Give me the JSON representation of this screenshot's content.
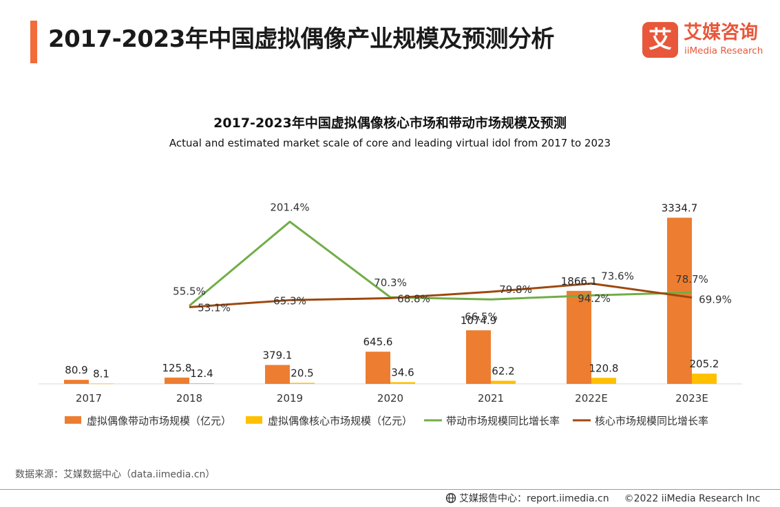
{
  "header": {
    "title": "2017-2023年中国虚拟偶像产业规模及预测分析",
    "accent_color": "#f26b3a"
  },
  "logo": {
    "glyph": "艾",
    "name_cn": "艾媒咨询",
    "name_en": "iiMedia Research",
    "color": "#e8573a"
  },
  "chart_data": {
    "type": "bar",
    "title": "2017-2023年中国虚拟偶像核心市场和带动市场规模及预测",
    "subtitle": "Actual and estimated market scale of core and leading virtual idol from 2017 to 2023",
    "categories": [
      "2017",
      "2018",
      "2019",
      "2020",
      "2021",
      "2022E",
      "2023E"
    ],
    "series": [
      {
        "name": "虚拟偶像带动市场规模（亿元）",
        "type": "bar",
        "axis": "left",
        "color": "#ed7d31",
        "values": [
          80.9,
          125.8,
          379.1,
          645.6,
          1074.9,
          1866.1,
          3334.7
        ],
        "labels": [
          "80.9",
          "125.8",
          "379.1",
          "645.6",
          "1074.9",
          "1866.1",
          "3334.7"
        ]
      },
      {
        "name": "虚拟偶像核心市场规模（亿元）",
        "type": "bar",
        "axis": "left",
        "color": "#ffc000",
        "values": [
          8.1,
          12.4,
          20.5,
          34.6,
          62.2,
          120.8,
          205.2
        ],
        "labels": [
          "8.1",
          "12.4",
          "20.5",
          "34.6",
          "62.2",
          "120.8",
          "205.2"
        ]
      },
      {
        "name": "带动市场规模同比增长率",
        "type": "line",
        "axis": "right",
        "color": "#70ad47",
        "values": [
          null,
          55.5,
          201.4,
          70.3,
          66.5,
          73.6,
          78.7
        ],
        "labels": [
          "",
          "55.5%",
          "201.4%",
          "70.3%",
          "66.5%",
          "73.6%",
          "78.7%"
        ]
      },
      {
        "name": "核心市场规模同比增长率",
        "type": "line",
        "axis": "right",
        "color": "#9e480e",
        "values": [
          null,
          53.1,
          65.3,
          68.8,
          79.8,
          94.2,
          69.9
        ],
        "labels": [
          "",
          "53.1%",
          "65.3%",
          "68.8%",
          "79.8%",
          "94.2%",
          "69.9%"
        ]
      }
    ],
    "ylim": [
      0,
      3700
    ],
    "y2lim": [
      -80,
      240
    ],
    "legend": "bottom",
    "grid": false
  },
  "source": "数据来源：艾媒数据中心（data.iimedia.cn）",
  "footer": {
    "report_center": "艾媒报告中心：report.iimedia.cn",
    "copyright": "©2022  iiMedia Research  Inc"
  }
}
